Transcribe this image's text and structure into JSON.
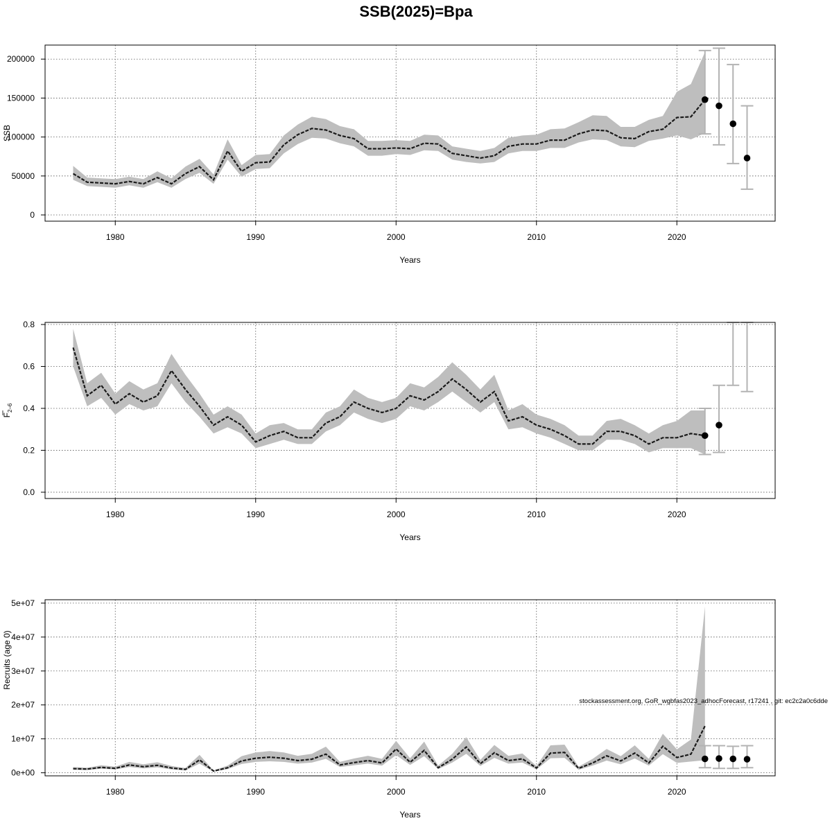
{
  "title": "SSB(2025)=Bpa",
  "footnote": "stockassessment.org, GoR_wgbfas2023_adhocForecast, r17241 , git: ec2c2a0c6dde",
  "colors": {
    "band": "#bebebe",
    "line": "#1a1a1a",
    "errorbar": "#b3b3b3",
    "point": "#000000",
    "grid": "#555555"
  },
  "chart_data": [
    {
      "type": "line",
      "ylabel": "SSB",
      "xlabel": "Years",
      "xlim": [
        1975,
        2027
      ],
      "ylim": [
        -8000,
        218000
      ],
      "x_ticks": [
        1980,
        1990,
        2000,
        2010,
        2020
      ],
      "y_ticks": [
        0,
        50000,
        100000,
        150000,
        200000
      ],
      "y_tick_labels": [
        "0",
        "50000",
        "100000",
        "150000",
        "200000"
      ],
      "grid": true,
      "series": [
        {
          "x": [
            1977,
            1978,
            1979,
            1980,
            1981,
            1982,
            1983,
            1984,
            1985,
            1986,
            1987,
            1988,
            1989,
            1990,
            1991,
            1992,
            1993,
            1994,
            1995,
            1996,
            1997,
            1998,
            1999,
            2000,
            2001,
            2002,
            2003,
            2004,
            2005,
            2006,
            2007,
            2008,
            2009,
            2010,
            2011,
            2012,
            2013,
            2014,
            2015,
            2016,
            2017,
            2018,
            2019,
            2020,
            2021,
            2022
          ],
          "estimate": [
            53000,
            42000,
            41000,
            40000,
            43000,
            40000,
            48000,
            40000,
            53000,
            62000,
            45000,
            82000,
            56000,
            67000,
            68000,
            90000,
            103000,
            111000,
            109000,
            102000,
            98000,
            85000,
            85000,
            86000,
            85000,
            92000,
            91000,
            79000,
            76000,
            73000,
            76000,
            88000,
            91000,
            91000,
            96000,
            96000,
            104000,
            109000,
            108000,
            99000,
            98000,
            107000,
            110000,
            125000,
            126000,
            148000
          ],
          "lower": [
            45000,
            37000,
            36000,
            35000,
            38000,
            35000,
            42000,
            35000,
            46000,
            54000,
            40000,
            71000,
            49000,
            59000,
            60000,
            79000,
            91000,
            99000,
            98000,
            92000,
            88000,
            76000,
            76000,
            78000,
            77000,
            83000,
            82000,
            71000,
            68000,
            66000,
            68000,
            79000,
            82000,
            82000,
            86000,
            86000,
            93000,
            97000,
            96000,
            88000,
            87000,
            95000,
            98000,
            102000,
            97000,
            105000
          ],
          "upper": [
            63000,
            48000,
            47000,
            46000,
            49000,
            46000,
            56000,
            47000,
            62000,
            72000,
            52000,
            97000,
            64000,
            77000,
            78000,
            102000,
            116000,
            126000,
            123000,
            114000,
            110000,
            95000,
            95000,
            96000,
            95000,
            103000,
            102000,
            88000,
            85000,
            82000,
            86000,
            99000,
            102000,
            103000,
            110000,
            111000,
            119000,
            128000,
            127000,
            113000,
            113000,
            122000,
            127000,
            158000,
            168000,
            209000
          ]
        }
      ],
      "forecast": [
        {
          "x": 2022,
          "value": 148000,
          "lower": 104000,
          "upper": 211000
        },
        {
          "x": 2023,
          "value": 140000,
          "lower": 90000,
          "upper": 214000
        },
        {
          "x": 2024,
          "value": 117000,
          "lower": 66000,
          "upper": 193000
        },
        {
          "x": 2025,
          "value": 73000,
          "lower": 33000,
          "upper": 140000
        }
      ]
    },
    {
      "type": "line",
      "ylabel": "F2-6",
      "ylabel_main": "F",
      "ylabel_sub": "2–6",
      "xlabel": "Years",
      "xlim": [
        1975,
        2027
      ],
      "ylim": [
        -0.03,
        0.81
      ],
      "x_ticks": [
        1980,
        1990,
        2000,
        2010,
        2020
      ],
      "y_ticks": [
        0.0,
        0.2,
        0.4,
        0.6,
        0.8
      ],
      "y_tick_labels": [
        "0.0",
        "0.2",
        "0.4",
        "0.6",
        "0.8"
      ],
      "grid": true,
      "series": [
        {
          "x": [
            1977,
            1978,
            1979,
            1980,
            1981,
            1982,
            1983,
            1984,
            1985,
            1986,
            1987,
            1988,
            1989,
            1990,
            1991,
            1992,
            1993,
            1994,
            1995,
            1996,
            1997,
            1998,
            1999,
            2000,
            2001,
            2002,
            2003,
            2004,
            2005,
            2006,
            2007,
            2008,
            2009,
            2010,
            2011,
            2012,
            2013,
            2014,
            2015,
            2016,
            2017,
            2018,
            2019,
            2020,
            2021,
            2022
          ],
          "estimate": [
            0.69,
            0.46,
            0.51,
            0.42,
            0.47,
            0.43,
            0.46,
            0.58,
            0.49,
            0.41,
            0.32,
            0.36,
            0.32,
            0.24,
            0.27,
            0.29,
            0.26,
            0.26,
            0.33,
            0.36,
            0.43,
            0.4,
            0.38,
            0.4,
            0.46,
            0.44,
            0.48,
            0.54,
            0.49,
            0.43,
            0.48,
            0.34,
            0.36,
            0.32,
            0.3,
            0.27,
            0.23,
            0.23,
            0.29,
            0.29,
            0.27,
            0.23,
            0.26,
            0.26,
            0.28,
            0.27
          ],
          "lower": [
            0.6,
            0.41,
            0.45,
            0.37,
            0.42,
            0.39,
            0.41,
            0.52,
            0.43,
            0.36,
            0.28,
            0.31,
            0.28,
            0.21,
            0.23,
            0.25,
            0.23,
            0.23,
            0.29,
            0.32,
            0.38,
            0.35,
            0.33,
            0.35,
            0.41,
            0.39,
            0.43,
            0.48,
            0.43,
            0.38,
            0.43,
            0.3,
            0.31,
            0.28,
            0.26,
            0.23,
            0.2,
            0.2,
            0.25,
            0.25,
            0.23,
            0.19,
            0.21,
            0.21,
            0.21,
            0.18
          ],
          "upper": [
            0.78,
            0.52,
            0.57,
            0.47,
            0.53,
            0.49,
            0.52,
            0.66,
            0.56,
            0.47,
            0.37,
            0.41,
            0.37,
            0.28,
            0.32,
            0.33,
            0.3,
            0.3,
            0.38,
            0.41,
            0.49,
            0.45,
            0.43,
            0.45,
            0.52,
            0.5,
            0.55,
            0.62,
            0.56,
            0.49,
            0.56,
            0.39,
            0.42,
            0.37,
            0.35,
            0.32,
            0.27,
            0.27,
            0.34,
            0.35,
            0.32,
            0.28,
            0.32,
            0.34,
            0.39,
            0.39
          ]
        }
      ],
      "forecast": [
        {
          "x": 2022,
          "value": 0.27,
          "lower": 0.18,
          "upper": 0.4
        },
        {
          "x": 2023,
          "value": 0.32,
          "lower": 0.19,
          "upper": 0.51
        },
        {
          "x": 2024,
          "value": null,
          "lower": 0.51,
          "upper": 0.81
        },
        {
          "x": 2025,
          "value": null,
          "lower": 0.48,
          "upper": 0.81
        }
      ]
    },
    {
      "type": "line",
      "ylabel": "Recruits (age 0)",
      "xlabel": "Years",
      "xlim": [
        1975,
        2027
      ],
      "ylim": [
        -900000,
        51000000
      ],
      "x_ticks": [
        1980,
        1990,
        2000,
        2010,
        2020
      ],
      "y_ticks": [
        0,
        10000000,
        20000000,
        30000000,
        40000000,
        50000000
      ],
      "y_tick_labels": [
        "0e+00",
        "1e+07",
        "2e+07",
        "3e+07",
        "4e+07",
        "5e+07"
      ],
      "grid": true,
      "series": [
        {
          "x": [
            1977,
            1978,
            1979,
            1980,
            1981,
            1982,
            1983,
            1984,
            1985,
            1986,
            1987,
            1988,
            1989,
            1990,
            1991,
            1992,
            1993,
            1994,
            1995,
            1996,
            1997,
            1998,
            1999,
            2000,
            2001,
            2002,
            2003,
            2004,
            2005,
            2006,
            2007,
            2008,
            2009,
            2010,
            2011,
            2012,
            2013,
            2014,
            2015,
            2016,
            2017,
            2018,
            2019,
            2020,
            2021,
            2022
          ],
          "estimate": [
            1200000,
            1100000,
            1600000,
            1300000,
            2300000,
            1800000,
            2200000,
            1400000,
            1000000,
            3800000,
            500000,
            1500000,
            3500000,
            4300000,
            4600000,
            4300000,
            3600000,
            4000000,
            5500000,
            2300000,
            3000000,
            3600000,
            2900000,
            7000000,
            3100000,
            6600000,
            1500000,
            4000000,
            7600000,
            2700000,
            5900000,
            3600000,
            4100000,
            1400000,
            5800000,
            6000000,
            1300000,
            2900000,
            5000000,
            3500000,
            5800000,
            2900000,
            7800000,
            4500000,
            5500000,
            13800000
          ],
          "lower": [
            900000,
            800000,
            1200000,
            1000000,
            1700000,
            1300000,
            1600000,
            1000000,
            700000,
            2700000,
            300000,
            1100000,
            2600000,
            3200000,
            3400000,
            3200000,
            2700000,
            3000000,
            4100000,
            1700000,
            2200000,
            2700000,
            2100000,
            5200000,
            2300000,
            4900000,
            1100000,
            3000000,
            5600000,
            2000000,
            4400000,
            2700000,
            3000000,
            1000000,
            4300000,
            4400000,
            900000,
            2100000,
            3600000,
            2500000,
            4200000,
            2100000,
            5500000,
            2900000,
            3300000,
            3700000
          ],
          "upper": [
            1700000,
            1500000,
            2200000,
            1800000,
            3200000,
            2500000,
            3100000,
            2000000,
            1400000,
            5300000,
            700000,
            2100000,
            4900000,
            6000000,
            6400000,
            6000000,
            5000000,
            5600000,
            7700000,
            3200000,
            4200000,
            5000000,
            4100000,
            9400000,
            4300000,
            9200000,
            2100000,
            5600000,
            10500000,
            3800000,
            8200000,
            5000000,
            5700000,
            2000000,
            8100000,
            8300000,
            1800000,
            4100000,
            7000000,
            4900000,
            8100000,
            4100000,
            11500000,
            6900000,
            9800000,
            49000000
          ]
        }
      ],
      "forecast": [
        {
          "x": 2022,
          "value": 4100000,
          "lower": 1500000,
          "upper": 8000000
        },
        {
          "x": 2023,
          "value": 4200000,
          "lower": 1300000,
          "upper": 8000000
        },
        {
          "x": 2024,
          "value": 4100000,
          "lower": 1300000,
          "upper": 7800000
        },
        {
          "x": 2025,
          "value": 4000000,
          "lower": 1500000,
          "upper": 8000000
        }
      ]
    }
  ]
}
